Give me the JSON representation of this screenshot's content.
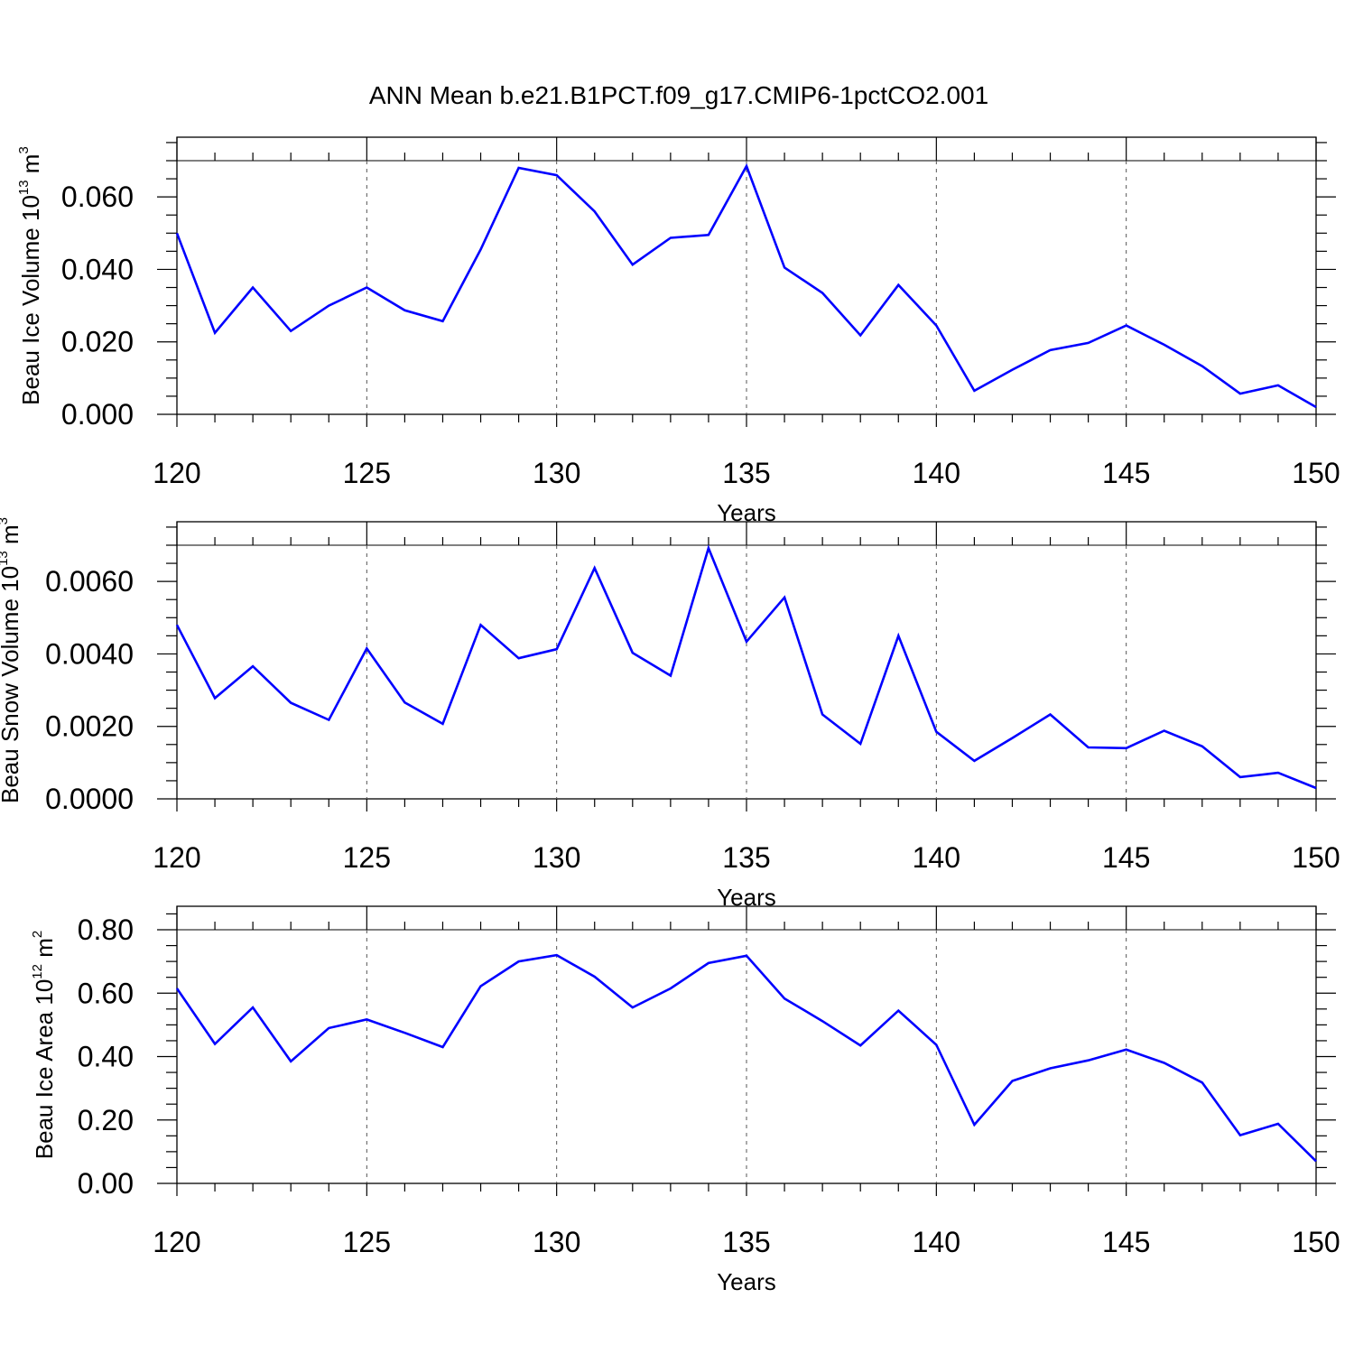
{
  "figure": {
    "title": "ANN Mean b.e21.B1PCT.f09_g17.CMIP6-1pctCO2.001",
    "line_color": "#0000ff"
  },
  "chart_data": [
    {
      "type": "line",
      "title": "ANN Mean b.e21.B1PCT.f09_g17.CMIP6-1pctCO2.001",
      "xlabel": "Years",
      "ylabel": {
        "prefix": "Beau Ice Volume 10",
        "exp": "13",
        "unit": " m",
        "unit_exp": "3"
      },
      "xlim": [
        120,
        150
      ],
      "ylim": [
        0,
        0.07
      ],
      "reference_line": 0.07,
      "xticks": [
        120,
        125,
        130,
        135,
        140,
        145,
        150
      ],
      "xtick_labels": [
        "120",
        "125",
        "130",
        "135",
        "140",
        "145",
        "150"
      ],
      "yticks": [
        0.0,
        0.02,
        0.04,
        0.06
      ],
      "ytick_labels": [
        "0.000",
        "0.020",
        "0.040",
        "0.060"
      ],
      "y_minor_step": 0.005,
      "grid": "vertical dashed at major x ticks",
      "series": [
        {
          "color": "#0000ff",
          "x": [
            120,
            121,
            122,
            123,
            124,
            125,
            126,
            127,
            128,
            129,
            130,
            131,
            132,
            133,
            134,
            135,
            136,
            137,
            138,
            139,
            140,
            141,
            142,
            143,
            144,
            145,
            146,
            147,
            148,
            149,
            150
          ],
          "y": [
            0.05,
            0.0225,
            0.035,
            0.023,
            0.03,
            0.035,
            0.0287,
            0.0257,
            0.0455,
            0.068,
            0.066,
            0.056,
            0.0413,
            0.0487,
            0.0495,
            0.0685,
            0.0405,
            0.0335,
            0.0218,
            0.0357,
            0.0245,
            0.0065,
            0.0123,
            0.0177,
            0.0197,
            0.0245,
            0.0192,
            0.0133,
            0.0057,
            0.008,
            0.002
          ]
        }
      ]
    },
    {
      "type": "line",
      "xlabel": "Years",
      "ylabel": {
        "prefix": "Beau Snow Volume 10",
        "exp": "13",
        "unit": " m",
        "unit_exp": "3"
      },
      "xlim": [
        120,
        150
      ],
      "ylim": [
        0,
        0.007
      ],
      "reference_line": 0.007,
      "xticks": [
        120,
        125,
        130,
        135,
        140,
        145,
        150
      ],
      "xtick_labels": [
        "120",
        "125",
        "130",
        "135",
        "140",
        "145",
        "150"
      ],
      "yticks": [
        0.0,
        0.002,
        0.004,
        0.006
      ],
      "ytick_labels": [
        "0.0000",
        "0.0020",
        "0.0040",
        "0.0060"
      ],
      "y_minor_step": 0.0005,
      "grid": "vertical dashed at major x ticks",
      "series": [
        {
          "color": "#0000ff",
          "x": [
            120,
            121,
            122,
            123,
            124,
            125,
            126,
            127,
            128,
            129,
            130,
            131,
            132,
            133,
            134,
            135,
            136,
            137,
            138,
            139,
            140,
            141,
            142,
            143,
            144,
            145,
            146,
            147,
            148,
            149,
            150
          ],
          "y": [
            0.0048,
            0.00278,
            0.00366,
            0.00265,
            0.00218,
            0.00415,
            0.00266,
            0.00207,
            0.0048,
            0.00388,
            0.00413,
            0.00637,
            0.00403,
            0.0034,
            0.00692,
            0.00434,
            0.00556,
            0.00233,
            0.00152,
            0.0045,
            0.00185,
            0.00105,
            0.00168,
            0.00233,
            0.00142,
            0.0014,
            0.00188,
            0.00145,
            0.0006,
            0.00072,
            0.0003
          ]
        }
      ]
    },
    {
      "type": "line",
      "xlabel": "Years",
      "ylabel": {
        "prefix": "Beau Ice Area 10",
        "exp": "12",
        "unit": " m",
        "unit_exp": "2"
      },
      "xlim": [
        120,
        150
      ],
      "ylim": [
        0,
        0.8
      ],
      "reference_line": 0.8,
      "xticks": [
        120,
        125,
        130,
        135,
        140,
        145,
        150
      ],
      "xtick_labels": [
        "120",
        "125",
        "130",
        "135",
        "140",
        "145",
        "150"
      ],
      "yticks": [
        0.0,
        0.2,
        0.4,
        0.6,
        0.8
      ],
      "ytick_labels": [
        "0.00",
        "0.20",
        "0.40",
        "0.60",
        "0.80"
      ],
      "y_minor_step": 0.05,
      "grid": "vertical dashed at major x ticks",
      "series": [
        {
          "color": "#0000ff",
          "x": [
            120,
            121,
            122,
            123,
            124,
            125,
            126,
            127,
            128,
            129,
            130,
            131,
            132,
            133,
            134,
            135,
            136,
            137,
            138,
            139,
            140,
            141,
            142,
            143,
            144,
            145,
            146,
            147,
            148,
            149,
            150
          ],
          "y": [
            0.615,
            0.44,
            0.555,
            0.385,
            0.49,
            0.517,
            0.475,
            0.43,
            0.622,
            0.7,
            0.72,
            0.652,
            0.555,
            0.615,
            0.695,
            0.718,
            0.583,
            0.512,
            0.435,
            0.545,
            0.437,
            0.185,
            0.323,
            0.363,
            0.388,
            0.422,
            0.38,
            0.318,
            0.152,
            0.188,
            0.07
          ]
        }
      ]
    }
  ]
}
